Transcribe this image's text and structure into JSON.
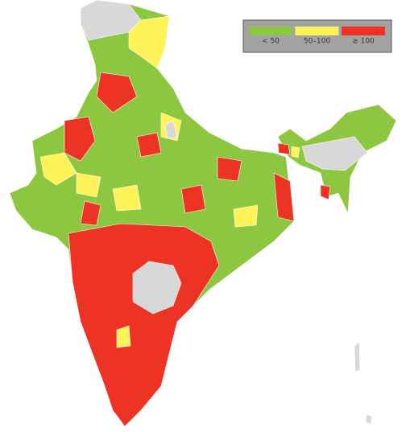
{
  "legend": {
    "items": [
      {
        "label": "< 50",
        "color": "#8dc63f"
      },
      {
        "label": "50–100",
        "color": "#fff35a"
      },
      {
        "label": "≥ 100",
        "color": "#ec3324"
      }
    ]
  }
}
